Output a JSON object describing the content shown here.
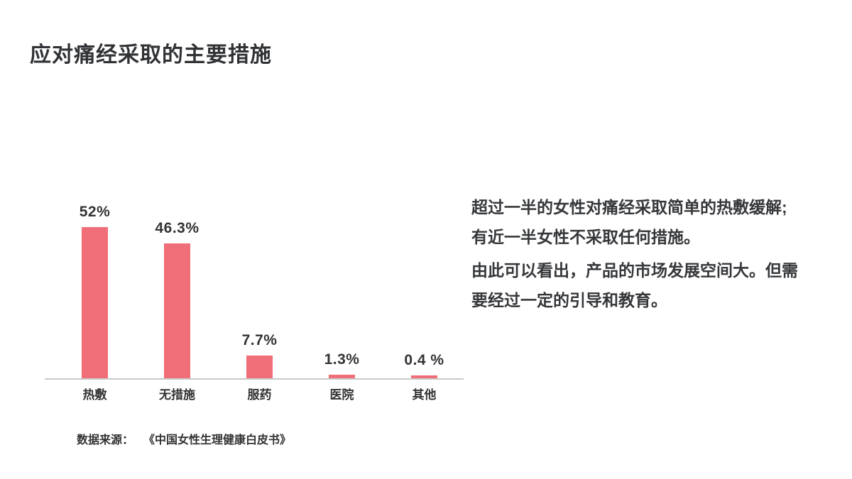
{
  "header": {
    "title": "应对痛经采取的主要措施"
  },
  "chart_data": {
    "type": "bar",
    "title": "应对痛经采取的主要措施",
    "categories": [
      "热敷",
      "无措施",
      "服药",
      "医院",
      "其他"
    ],
    "values": [
      52,
      46.3,
      7.7,
      1.3,
      0.4
    ],
    "value_labels": [
      "52%",
      "46.3%",
      "7.7%",
      "1.3%",
      "0.4 %"
    ],
    "xlabel": "",
    "ylabel": "",
    "ylim": [
      0,
      60
    ],
    "grid": false,
    "legend": false,
    "bar_color": "#F06E78",
    "axis_color": "#C9C9C9"
  },
  "analysis": {
    "lines": [
      "超过一半的女性对痛经采取简单的热敷缓解;",
      "有近一半女性不采取任何措施。",
      "由此可以看出，产品的市场发展空间大。但需",
      "要经过一定的引导和教育。"
    ]
  },
  "source": {
    "label": "数据来源：",
    "text": "《中国女性生理健康白皮书》"
  }
}
